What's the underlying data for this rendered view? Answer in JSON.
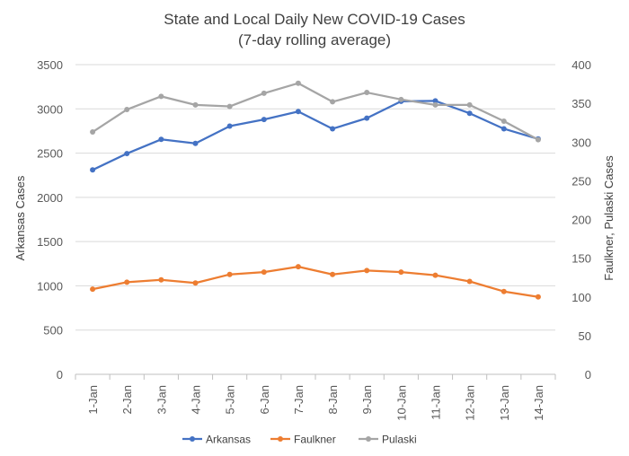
{
  "chart_data": {
    "type": "line",
    "title": "State and Local Daily New COVID-19 Cases",
    "subtitle": "(7-day rolling average)",
    "categories": [
      "1-Jan",
      "2-Jan",
      "3-Jan",
      "4-Jan",
      "5-Jan",
      "6-Jan",
      "7-Jan",
      "8-Jan",
      "9-Jan",
      "10-Jan",
      "11-Jan",
      "12-Jan",
      "13-Jan",
      "14-Jan"
    ],
    "ylabel": "Arkansas Cases",
    "y2label": "Faulkner, Pulaski Cases",
    "ylim": [
      0,
      3500
    ],
    "y2lim": [
      0,
      400
    ],
    "yticks": [
      0,
      500,
      1000,
      1500,
      2000,
      2500,
      3000,
      3500
    ],
    "y2ticks": [
      0,
      50,
      100,
      150,
      200,
      250,
      300,
      350,
      400
    ],
    "grid": true,
    "legend_position": "bottom",
    "series": [
      {
        "name": "Arkansas",
        "axis": "left",
        "color": "#4472C4",
        "values": [
          2310,
          2495,
          2655,
          2610,
          2805,
          2880,
          2970,
          2775,
          2895,
          3085,
          3090,
          2950,
          2775,
          2660
        ]
      },
      {
        "name": "Faulkner",
        "axis": "right",
        "color": "#ED7D31",
        "values": [
          110,
          119,
          122,
          118,
          129,
          132,
          139,
          129,
          134,
          132,
          128,
          120,
          107,
          100
        ]
      },
      {
        "name": "Pulaski",
        "axis": "right",
        "color": "#A5A5A5",
        "values": [
          313,
          342,
          359,
          348,
          346,
          363,
          376,
          352,
          364,
          355,
          348,
          348,
          327,
          303
        ]
      }
    ]
  }
}
